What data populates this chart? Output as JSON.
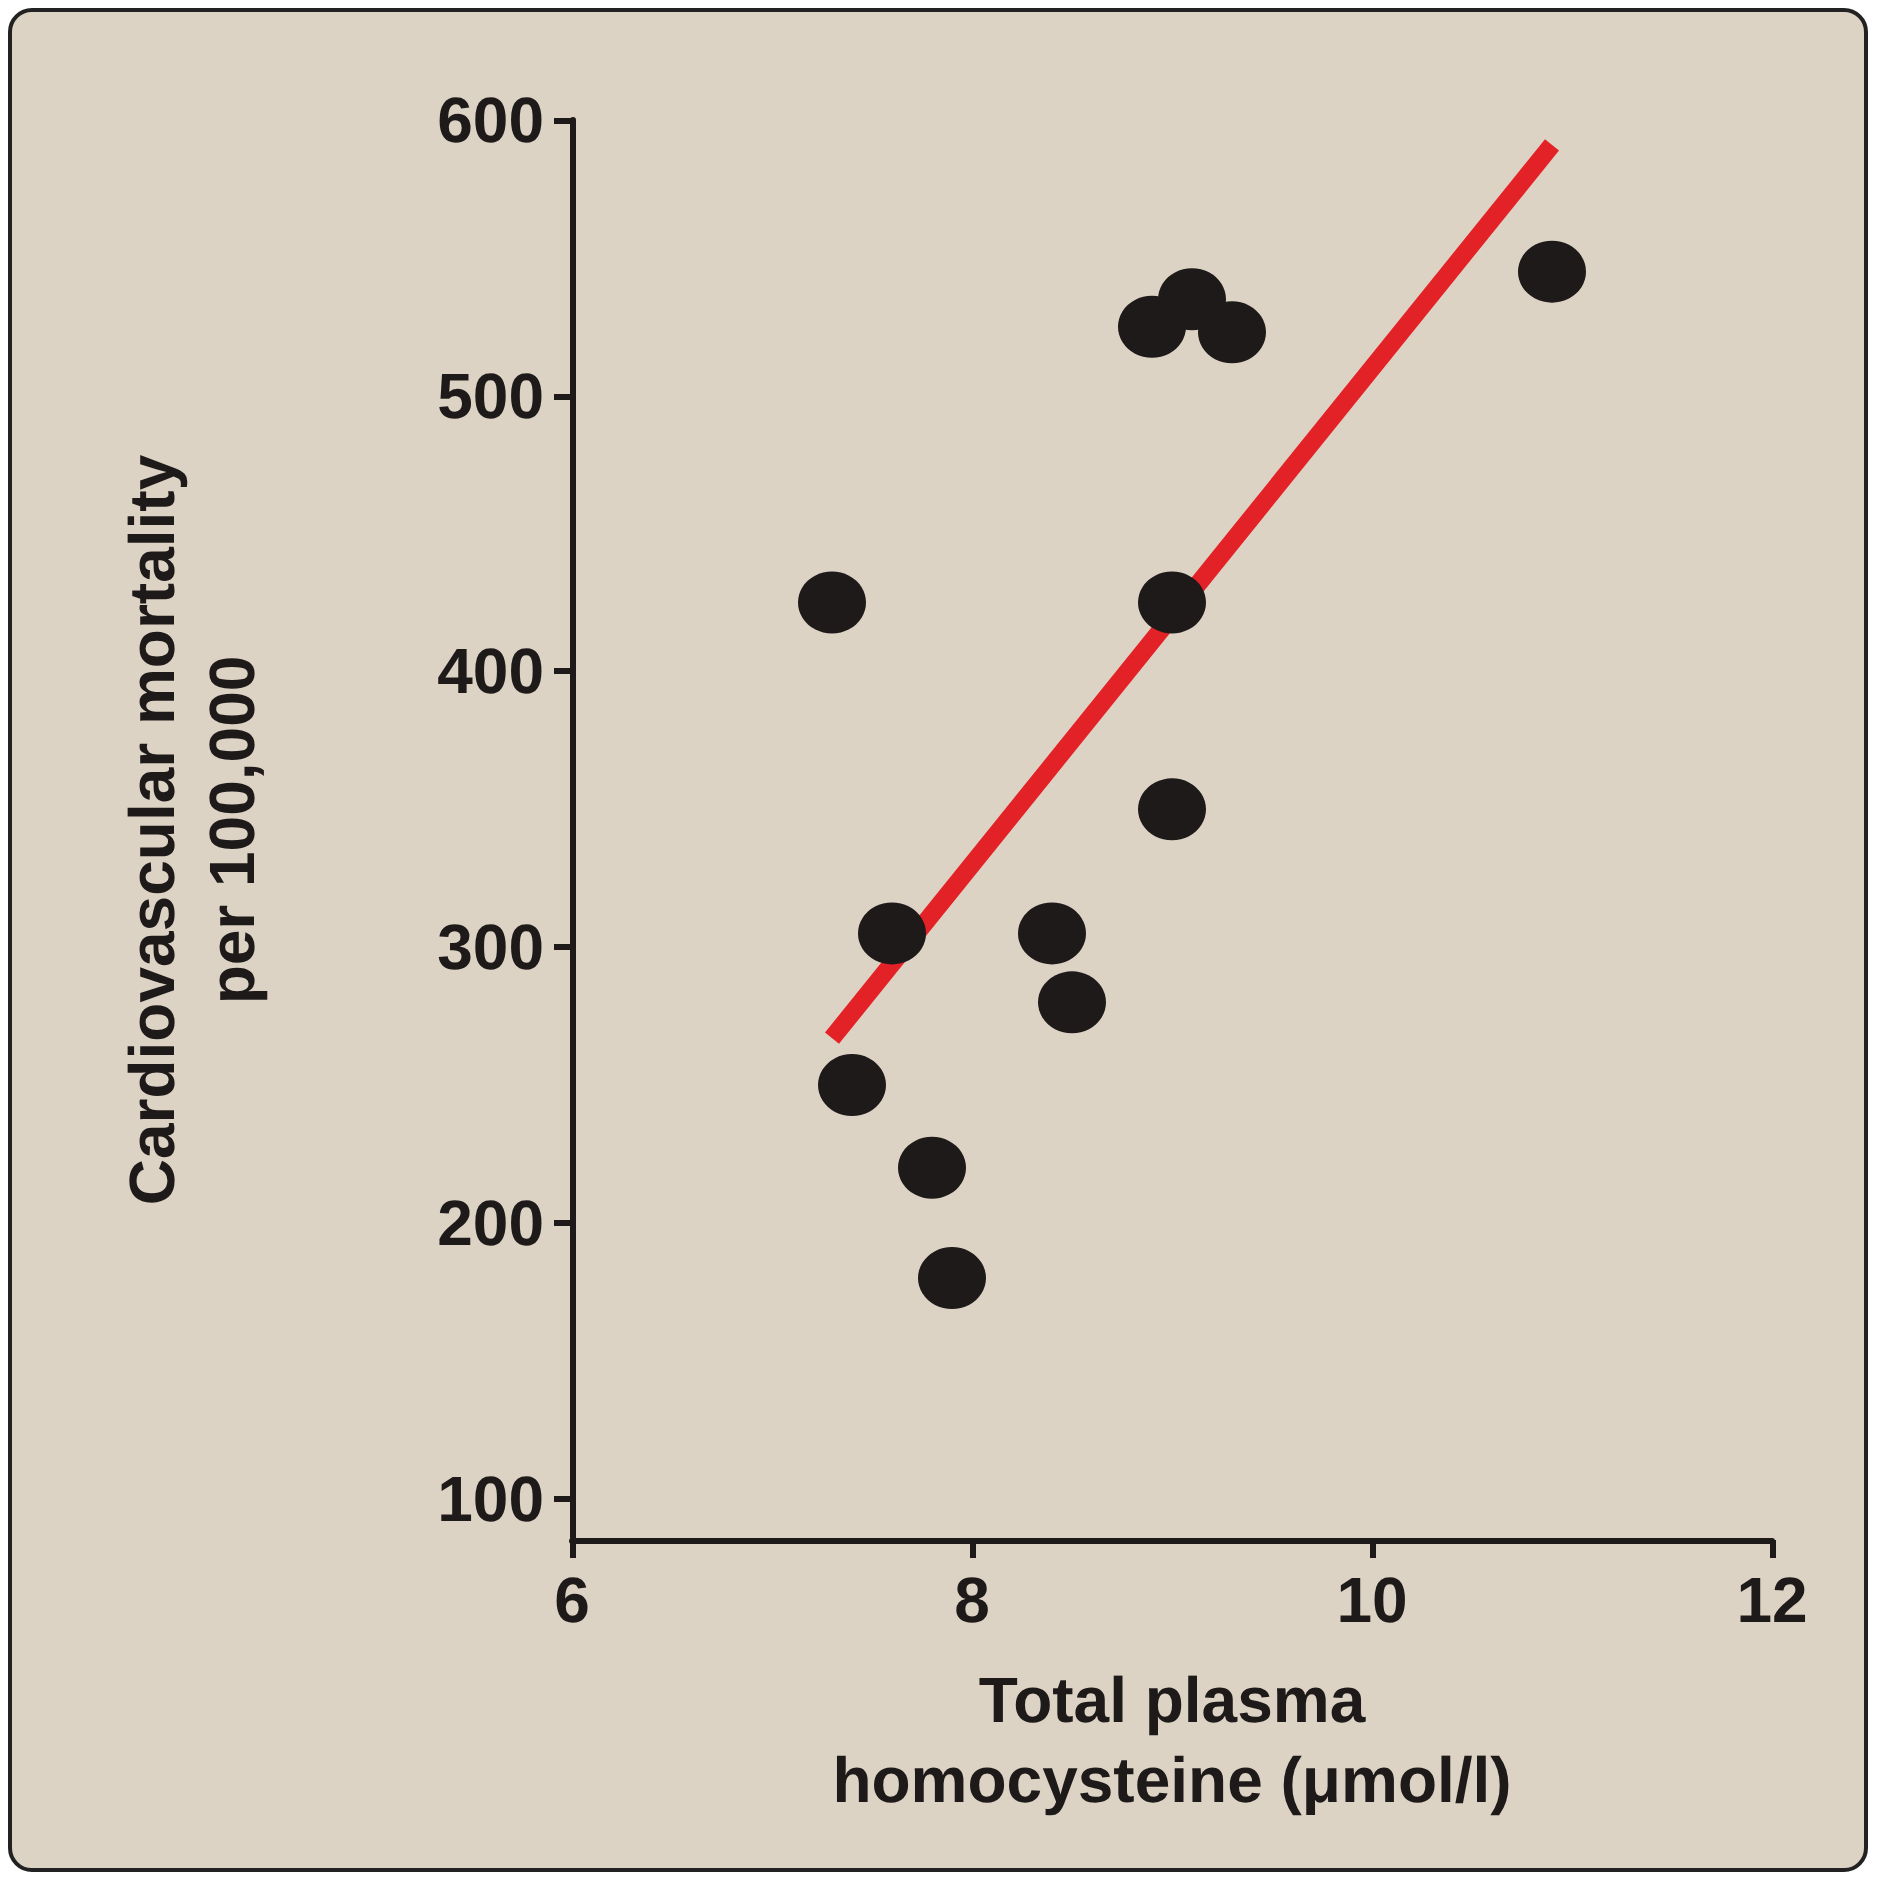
{
  "chart_data": {
    "type": "scatter",
    "xlabel": "Total plasma\nhomocysteine (μmol/l)",
    "ylabel": "Cardiovascular mortality\nper 100,000",
    "xlim": [
      6,
      12
    ],
    "xticks": [
      6,
      8,
      10,
      12
    ],
    "ylim": [
      85,
      600
    ],
    "yticks": [
      100,
      200,
      300,
      400,
      500,
      600
    ],
    "grid": false,
    "marker": "circle",
    "series": [
      {
        "type": "line",
        "color": "#e32228",
        "x": [
          7.3,
          10.9
        ],
        "values": [
          267,
          591
        ],
        "marker": "none"
      },
      {
        "color": "#1e1a1a",
        "x": [
          7.3,
          7.4,
          7.6,
          7.8,
          7.9,
          8.4,
          8.5,
          9.0,
          9.0,
          8.9,
          9.1,
          9.3,
          10.9
        ],
        "values": [
          425,
          250,
          305,
          220,
          180,
          305,
          280,
          350,
          425,
          525,
          535,
          523,
          545
        ]
      }
    ]
  }
}
